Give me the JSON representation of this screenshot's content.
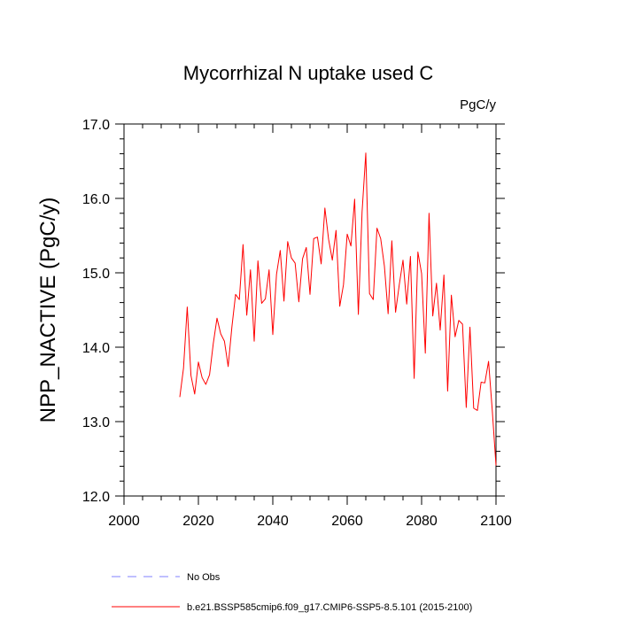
{
  "chart_data": {
    "type": "line",
    "title": "Mycorrhizal N uptake used C",
    "units": "PgC/y",
    "ylabel": "NPP_NACTIVE  (PgC/y)",
    "xlabel": "",
    "xlim": [
      2000,
      2100
    ],
    "ylim": [
      12.0,
      17.0
    ],
    "x_ticks": [
      2000,
      2020,
      2040,
      2060,
      2080,
      2100
    ],
    "x_tick_labels": [
      "2000",
      "2020",
      "2040",
      "2060",
      "2080",
      "2100"
    ],
    "y_ticks": [
      12.0,
      13.0,
      14.0,
      15.0,
      16.0,
      17.0
    ],
    "y_tick_labels": [
      "12.0",
      "13.0",
      "14.0",
      "15.0",
      "16.0",
      "17.0"
    ],
    "series": [
      {
        "name": "b.e21.BSSP585cmip6.f09_g17.CMIP6-SSP5-8.5.101 (2015-2100)",
        "color": "#ff0000",
        "x": [
          2015,
          2016,
          2017,
          2018,
          2019,
          2020,
          2021,
          2022,
          2023,
          2024,
          2025,
          2026,
          2027,
          2028,
          2029,
          2030,
          2031,
          2032,
          2033,
          2034,
          2035,
          2036,
          2037,
          2038,
          2039,
          2040,
          2041,
          2042,
          2043,
          2044,
          2045,
          2046,
          2047,
          2048,
          2049,
          2050,
          2051,
          2052,
          2053,
          2054,
          2055,
          2056,
          2057,
          2058,
          2059,
          2060,
          2061,
          2062,
          2063,
          2064,
          2065,
          2066,
          2067,
          2068,
          2069,
          2070,
          2071,
          2072,
          2073,
          2074,
          2075,
          2076,
          2077,
          2078,
          2079,
          2080,
          2081,
          2082,
          2083,
          2084,
          2085,
          2086,
          2087,
          2088,
          2089,
          2090,
          2091,
          2092,
          2093,
          2094,
          2095,
          2096,
          2097,
          2098,
          2099,
          2100
        ],
        "values": [
          13.33,
          13.72,
          14.54,
          13.62,
          13.37,
          13.8,
          13.59,
          13.5,
          13.63,
          14.05,
          14.39,
          14.18,
          14.08,
          13.74,
          14.27,
          14.71,
          14.64,
          15.38,
          14.43,
          15.04,
          14.08,
          15.16,
          14.59,
          14.65,
          15.04,
          14.17,
          14.98,
          15.3,
          14.62,
          15.42,
          15.2,
          15.13,
          14.61,
          15.19,
          15.34,
          14.71,
          15.46,
          15.48,
          15.12,
          15.87,
          15.45,
          15.17,
          15.57,
          14.55,
          14.84,
          15.52,
          15.36,
          15.99,
          14.44,
          15.82,
          16.61,
          14.72,
          14.64,
          15.6,
          15.46,
          15.09,
          14.45,
          15.43,
          14.47,
          14.84,
          15.17,
          14.58,
          15.22,
          13.58,
          15.28,
          14.99,
          13.92,
          15.8,
          14.42,
          14.86,
          14.23,
          14.97,
          13.41,
          14.7,
          14.14,
          14.36,
          14.31,
          13.19,
          14.27,
          13.18,
          13.15,
          13.53,
          13.52,
          13.81,
          13.15,
          12.41
        ]
      }
    ],
    "legend": [
      {
        "label": "No Obs",
        "color": "#8080ff",
        "style": "dashed"
      },
      {
        "label": "b.e21.BSSP585cmip6.f09_g17.CMIP6-SSP5-8.5.101 (2015-2100)",
        "color": "#ff0000",
        "style": "solid"
      }
    ]
  }
}
